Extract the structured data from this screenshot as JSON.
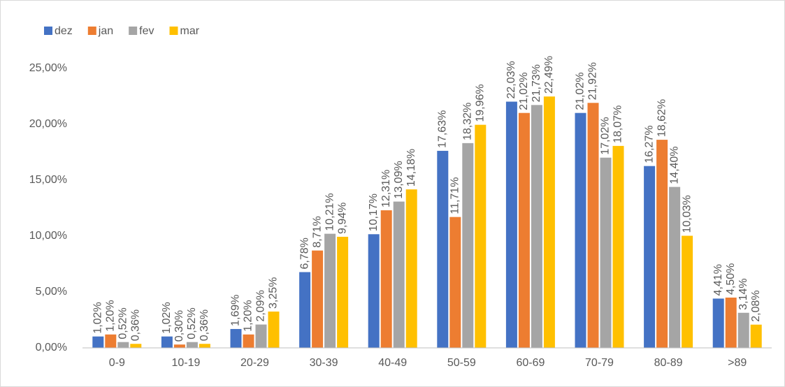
{
  "chart_data": {
    "type": "bar",
    "categories": [
      "0-9",
      "10-19",
      "20-29",
      "30-39",
      "40-49",
      "50-59",
      "60-69",
      "70-79",
      "80-89",
      ">89"
    ],
    "series": [
      {
        "name": "dez",
        "color": "#4472c4",
        "values": [
          1.02,
          1.02,
          1.69,
          6.78,
          10.17,
          17.63,
          22.03,
          21.02,
          16.27,
          4.41
        ],
        "value_labels": [
          "1,02%",
          "1,02%",
          "1,69%",
          "6,78%",
          "10,17%",
          "17,63%",
          "22,03%",
          "21,02%",
          "16,27%",
          "4,41%"
        ]
      },
      {
        "name": "jan",
        "color": "#ed7d31",
        "values": [
          1.2,
          0.3,
          1.2,
          8.71,
          12.31,
          11.71,
          21.02,
          21.92,
          18.62,
          4.5
        ],
        "value_labels": [
          "1,20%",
          "0,30%",
          "1,20%",
          "8,71%",
          "12,31%",
          "11,71%",
          "21,02%",
          "21,92%",
          "18,62%",
          "4,50%"
        ]
      },
      {
        "name": "fev",
        "color": "#a5a5a5",
        "values": [
          0.52,
          0.52,
          2.09,
          10.21,
          13.09,
          18.32,
          21.73,
          17.02,
          14.4,
          3.14
        ],
        "value_labels": [
          "0,52%",
          "0,52%",
          "2,09%",
          "10,21%",
          "13,09%",
          "18,32%",
          "21,73%",
          "17,02%",
          "14,40%",
          "3,14%"
        ]
      },
      {
        "name": "mar",
        "color": "#ffc000",
        "values": [
          0.36,
          0.36,
          3.25,
          9.94,
          14.18,
          19.96,
          22.49,
          18.07,
          10.03,
          2.08
        ],
        "value_labels": [
          "0,36%",
          "0,36%",
          "3,25%",
          "9,94%",
          "14,18%",
          "19,96%",
          "22,49%",
          "18,07%",
          "10,03%",
          "2,08%"
        ]
      }
    ],
    "ylim": [
      0,
      25
    ],
    "yticks": [
      {
        "value": 0,
        "label": "0,00%"
      },
      {
        "value": 5,
        "label": "5,00%"
      },
      {
        "value": 10,
        "label": "10,00%"
      },
      {
        "value": 15,
        "label": "15,00%"
      },
      {
        "value": 20,
        "label": "20,00%"
      },
      {
        "value": 25,
        "label": "25,00%"
      }
    ],
    "grid": false,
    "legend": "top-left"
  }
}
